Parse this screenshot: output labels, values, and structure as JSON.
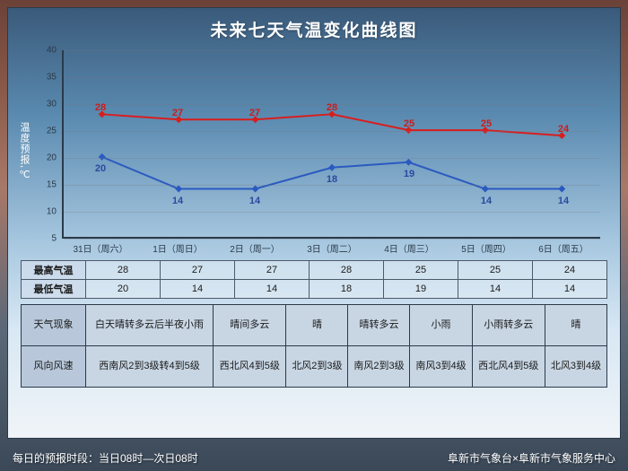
{
  "title": "未来七天气温变化曲线图",
  "y_axis_label": "温度预报,℃",
  "chart": {
    "type": "line",
    "ylim": [
      5,
      40
    ],
    "ytick_step": 5,
    "categories": [
      "31日（周六）",
      "1日（周日）",
      "2日（周一）",
      "3日（周二）",
      "4日（周三）",
      "5日（周四）",
      "6日（周五）"
    ],
    "series": [
      {
        "name": "最高气温",
        "color": "#d81e1e",
        "marker": "diamond",
        "values": [
          28,
          27,
          27,
          28,
          25,
          25,
          24
        ],
        "label_offset": -14
      },
      {
        "name": "最低气温",
        "color": "#2a5ac0",
        "marker": "diamond",
        "values": [
          20,
          14,
          14,
          18,
          19,
          14,
          14
        ],
        "label_offset": 6
      }
    ],
    "grid_color": "rgba(120,120,130,0.3)",
    "axis_color": "#2a3a4a",
    "line_width": 2
  },
  "summary_rows": [
    {
      "label": "最高气温",
      "values": [
        "28",
        "27",
        "27",
        "28",
        "25",
        "25",
        "24"
      ]
    },
    {
      "label": "最低气温",
      "values": [
        "20",
        "14",
        "14",
        "18",
        "19",
        "14",
        "14"
      ]
    }
  ],
  "info_rows": [
    {
      "label": "天气现象",
      "values": [
        "白天晴转多云后半夜小雨",
        "晴间多云",
        "晴",
        "晴转多云",
        "小雨",
        "小雨转多云",
        "晴"
      ]
    },
    {
      "label": "风向风速",
      "values": [
        "西南风2到3级转4到5级",
        "西北风4到5级",
        "北风2到3级",
        "南风2到3级",
        "南风3到4级",
        "西北风4到5级",
        "北风3到4级"
      ]
    }
  ],
  "footer_left": "每日的预报时段：当日08时—次日08时",
  "footer_right": "阜新市气象台×阜新市气象服务中心"
}
